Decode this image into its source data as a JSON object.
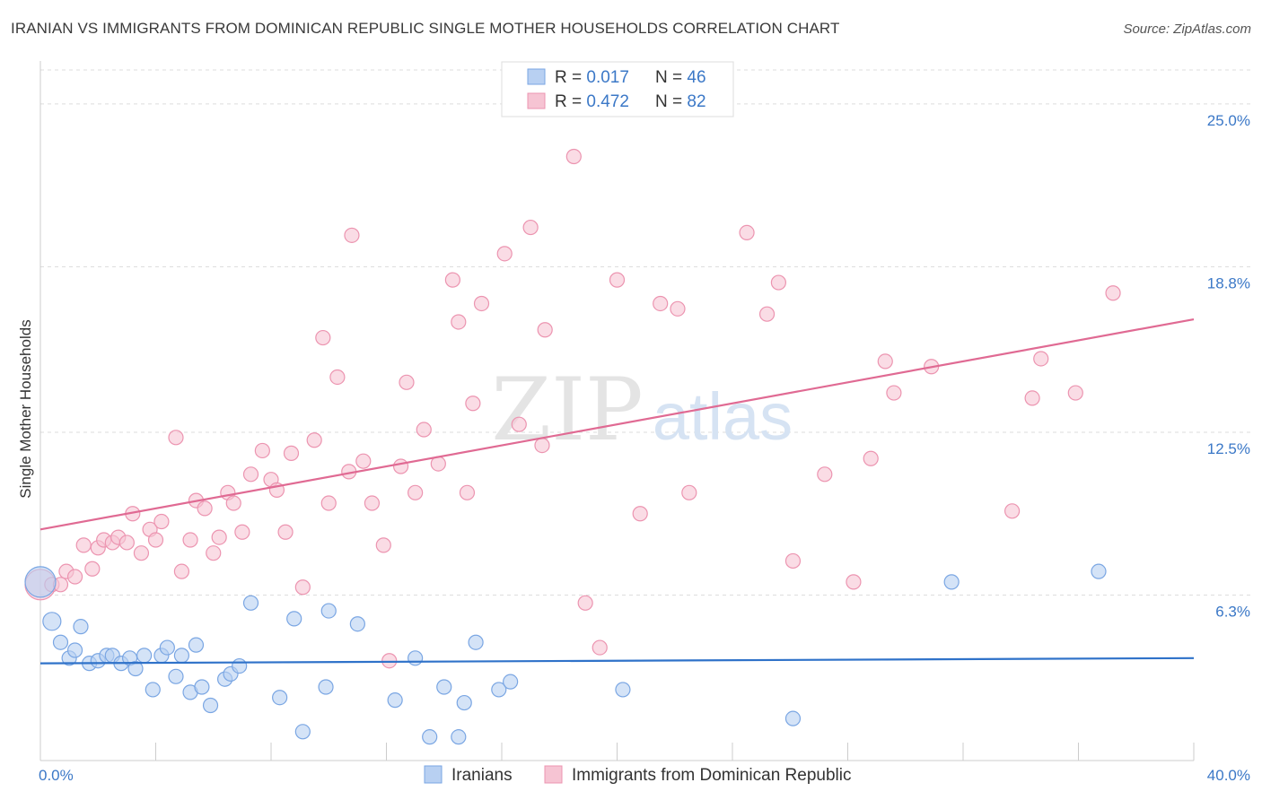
{
  "header": {
    "title": "IRANIAN VS IMMIGRANTS FROM DOMINICAN REPUBLIC SINGLE MOTHER HOUSEHOLDS CORRELATION CHART",
    "source": "Source: ZipAtlas.com"
  },
  "watermark": {
    "zip": "ZIP",
    "atlas": "atlas"
  },
  "colors": {
    "blue_fill": "#b8d0f2",
    "blue_stroke": "#7aa6e3",
    "blue_line": "#2f72c9",
    "pink_fill": "#f6c4d3",
    "pink_stroke": "#ec94b0",
    "pink_line": "#e06a93",
    "axis_text": "#3b78c7",
    "grid": "#dddddd"
  },
  "legend": {
    "rows": [
      {
        "r_label": "R = ",
        "r_value": "0.017",
        "n_label": "N = ",
        "n_value": "46"
      },
      {
        "r_label": "R = ",
        "r_value": "0.472",
        "n_label": "N = ",
        "n_value": "82"
      }
    ]
  },
  "bottom_legend": [
    "Iranians",
    "Immigrants from Dominican Republic"
  ],
  "chart_data": {
    "type": "scatter",
    "ylabel": "Single Mother Households",
    "xlim": [
      0,
      40
    ],
    "ylim": [
      0,
      26.5
    ],
    "x_tick_labels": [
      "0.0%",
      "40.0%"
    ],
    "y_ticks": [
      {
        "value": 6.3,
        "label": "6.3%"
      },
      {
        "value": 12.5,
        "label": "12.5%"
      },
      {
        "value": 18.8,
        "label": "18.8%"
      },
      {
        "value": 25.0,
        "label": "25.0%"
      }
    ],
    "grid": true,
    "series": [
      {
        "name": "Iranians",
        "trend": {
          "x": [
            0,
            40
          ],
          "y": [
            3.7,
            3.9
          ]
        },
        "points": [
          [
            0.0,
            6.8,
            "lg"
          ],
          [
            0.4,
            5.3,
            "md"
          ],
          [
            0.7,
            4.5
          ],
          [
            1.0,
            3.9
          ],
          [
            1.2,
            4.2
          ],
          [
            1.4,
            5.1
          ],
          [
            1.7,
            3.7
          ],
          [
            2.0,
            3.8
          ],
          [
            2.3,
            4.0
          ],
          [
            2.5,
            4.0
          ],
          [
            2.8,
            3.7
          ],
          [
            3.1,
            3.9
          ],
          [
            3.3,
            3.5
          ],
          [
            3.6,
            4.0
          ],
          [
            3.9,
            2.7
          ],
          [
            4.2,
            4.0
          ],
          [
            4.4,
            4.3
          ],
          [
            4.7,
            3.2
          ],
          [
            4.9,
            4.0
          ],
          [
            5.2,
            2.6
          ],
          [
            5.4,
            4.4
          ],
          [
            5.6,
            2.8
          ],
          [
            5.9,
            2.1
          ],
          [
            6.4,
            3.1
          ],
          [
            6.6,
            3.3
          ],
          [
            6.9,
            3.6
          ],
          [
            7.3,
            6.0
          ],
          [
            8.3,
            2.4
          ],
          [
            8.8,
            5.4
          ],
          [
            9.1,
            1.1
          ],
          [
            9.9,
            2.8
          ],
          [
            10.0,
            5.7
          ],
          [
            11.0,
            5.2
          ],
          [
            12.3,
            2.3
          ],
          [
            13.0,
            3.9
          ],
          [
            13.5,
            0.9
          ],
          [
            14.0,
            2.8
          ],
          [
            14.5,
            0.9
          ],
          [
            14.7,
            2.2
          ],
          [
            15.1,
            4.5
          ],
          [
            15.9,
            2.7
          ],
          [
            16.3,
            3.0
          ],
          [
            20.2,
            2.7
          ],
          [
            26.1,
            1.6
          ],
          [
            31.6,
            6.8
          ],
          [
            36.7,
            7.2
          ]
        ]
      },
      {
        "name": "Immigrants from Dominican Republic",
        "trend": {
          "x": [
            0,
            40
          ],
          "y": [
            8.8,
            16.8
          ]
        },
        "points": [
          [
            0.0,
            6.7,
            "lg"
          ],
          [
            0.4,
            6.7
          ],
          [
            0.7,
            6.7
          ],
          [
            0.9,
            7.2
          ],
          [
            1.2,
            7.0
          ],
          [
            1.5,
            8.2
          ],
          [
            1.8,
            7.3
          ],
          [
            2.0,
            8.1
          ],
          [
            2.2,
            8.4
          ],
          [
            2.5,
            8.3
          ],
          [
            2.7,
            8.5
          ],
          [
            3.0,
            8.3
          ],
          [
            3.2,
            9.4
          ],
          [
            3.5,
            7.9
          ],
          [
            3.8,
            8.8
          ],
          [
            4.0,
            8.4
          ],
          [
            4.2,
            9.1
          ],
          [
            4.7,
            12.3
          ],
          [
            4.9,
            7.2
          ],
          [
            5.2,
            8.4
          ],
          [
            5.4,
            9.9
          ],
          [
            5.7,
            9.6
          ],
          [
            6.0,
            7.9
          ],
          [
            6.2,
            8.5
          ],
          [
            6.5,
            10.2
          ],
          [
            6.7,
            9.8
          ],
          [
            7.0,
            8.7
          ],
          [
            7.3,
            10.9
          ],
          [
            7.7,
            11.8
          ],
          [
            8.0,
            10.7
          ],
          [
            8.2,
            10.3
          ],
          [
            8.5,
            8.7
          ],
          [
            8.7,
            11.7
          ],
          [
            9.1,
            6.6
          ],
          [
            9.5,
            12.2
          ],
          [
            9.8,
            16.1
          ],
          [
            10.0,
            9.8
          ],
          [
            10.3,
            14.6
          ],
          [
            10.7,
            11.0
          ],
          [
            10.8,
            20.0
          ],
          [
            11.2,
            11.4
          ],
          [
            11.5,
            9.8
          ],
          [
            11.9,
            8.2
          ],
          [
            12.1,
            3.8
          ],
          [
            12.5,
            11.2
          ],
          [
            12.7,
            14.4
          ],
          [
            13.0,
            10.2
          ],
          [
            13.3,
            12.6
          ],
          [
            13.8,
            11.3
          ],
          [
            14.3,
            18.3
          ],
          [
            14.5,
            16.7
          ],
          [
            14.8,
            10.2
          ],
          [
            15.0,
            13.6
          ],
          [
            15.3,
            17.4
          ],
          [
            16.1,
            19.3
          ],
          [
            16.6,
            12.8
          ],
          [
            17.0,
            20.3
          ],
          [
            17.4,
            12.0
          ],
          [
            17.5,
            16.4
          ],
          [
            18.5,
            23.0
          ],
          [
            18.9,
            6.0
          ],
          [
            19.4,
            4.3
          ],
          [
            20.0,
            18.3
          ],
          [
            20.8,
            9.4
          ],
          [
            21.5,
            17.4
          ],
          [
            22.1,
            17.2
          ],
          [
            22.5,
            10.2
          ],
          [
            24.5,
            20.1
          ],
          [
            25.2,
            17.0
          ],
          [
            25.6,
            18.2
          ],
          [
            26.1,
            7.6
          ],
          [
            27.2,
            10.9
          ],
          [
            28.2,
            6.8
          ],
          [
            28.8,
            11.5
          ],
          [
            29.3,
            15.2
          ],
          [
            29.6,
            14.0
          ],
          [
            30.9,
            15.0
          ],
          [
            33.7,
            9.5
          ],
          [
            34.4,
            13.8
          ],
          [
            34.7,
            15.3
          ],
          [
            35.9,
            14.0
          ],
          [
            37.2,
            17.8
          ]
        ]
      }
    ]
  }
}
